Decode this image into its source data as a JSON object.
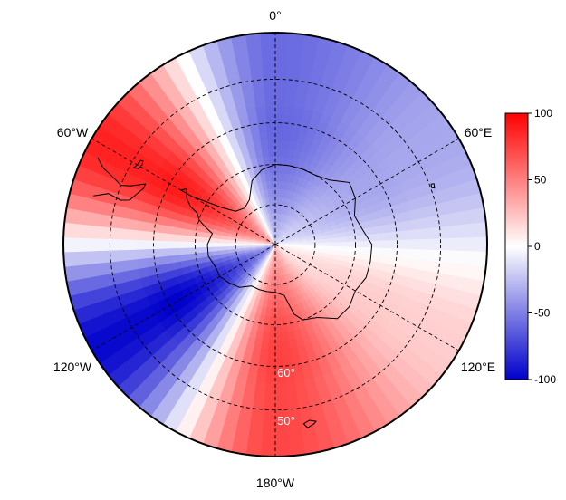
{
  "map": {
    "projection": "south-polar-stereographic",
    "min_latitude": -40,
    "longitude_labels": [
      {
        "lon": 0,
        "text": "0°"
      },
      {
        "lon": -60,
        "text": "60°W"
      },
      {
        "lon": 60,
        "text": "60°E"
      },
      {
        "lon": -120,
        "text": "120°W"
      },
      {
        "lon": 120,
        "text": "120°E"
      },
      {
        "lon": 180,
        "text": "180°W"
      }
    ],
    "latitude_labels": [
      {
        "lat": -60,
        "text": "60°"
      },
      {
        "lat": -50,
        "text": "50°"
      }
    ],
    "field": {
      "description": "zonal-wave-3 anomaly, red positive / blue negative",
      "pattern": [
        {
          "lon": -60,
          "value": 90
        },
        {
          "lon": 0,
          "value": -60
        },
        {
          "lon": 60,
          "value": -35
        },
        {
          "lon": 120,
          "value": 20
        },
        {
          "lon": 180,
          "value": 75
        },
        {
          "lon": -120,
          "value": -100
        }
      ]
    },
    "colors": {
      "positive": "#ff0000",
      "neutral": "#ffffff",
      "negative": "#0000ff",
      "grid": "#000000",
      "coast": "#000000"
    }
  },
  "colorbar": {
    "min": -100,
    "max": 100,
    "ticks": [
      {
        "value": 100,
        "text": "100"
      },
      {
        "value": 50,
        "text": "50"
      },
      {
        "value": 0,
        "text": "0"
      },
      {
        "value": -50,
        "text": "-50"
      },
      {
        "value": -100,
        "text": "-100"
      }
    ]
  }
}
